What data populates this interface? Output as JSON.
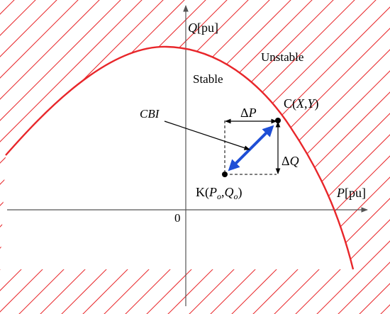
{
  "axes": {
    "y_label_main": "Q",
    "y_label_unit": "[pu]",
    "x_label_main": "P",
    "x_label_unit": "[pu]",
    "origin_label": "0"
  },
  "regions": {
    "stable": "Stable",
    "unstable": "Unstable"
  },
  "points": {
    "c_prefix": "C(",
    "c_x": "X",
    "c_comma": ",",
    "c_y": "Y",
    "c_suffix": ")",
    "k_prefix": "K(",
    "k_p": "P",
    "k_p_sub": "o",
    "k_comma": ",",
    "k_q": "Q",
    "k_q_sub": "o",
    "k_suffix": ")"
  },
  "deltas": {
    "delta": "Δ",
    "p": "P",
    "q": "Q"
  },
  "cbi_label": "CBI",
  "colors": {
    "curve": "#e8262a",
    "hatch": "#e8262a",
    "vector": "#1f4fd6",
    "axes": "#555555",
    "text": "#000000"
  }
}
